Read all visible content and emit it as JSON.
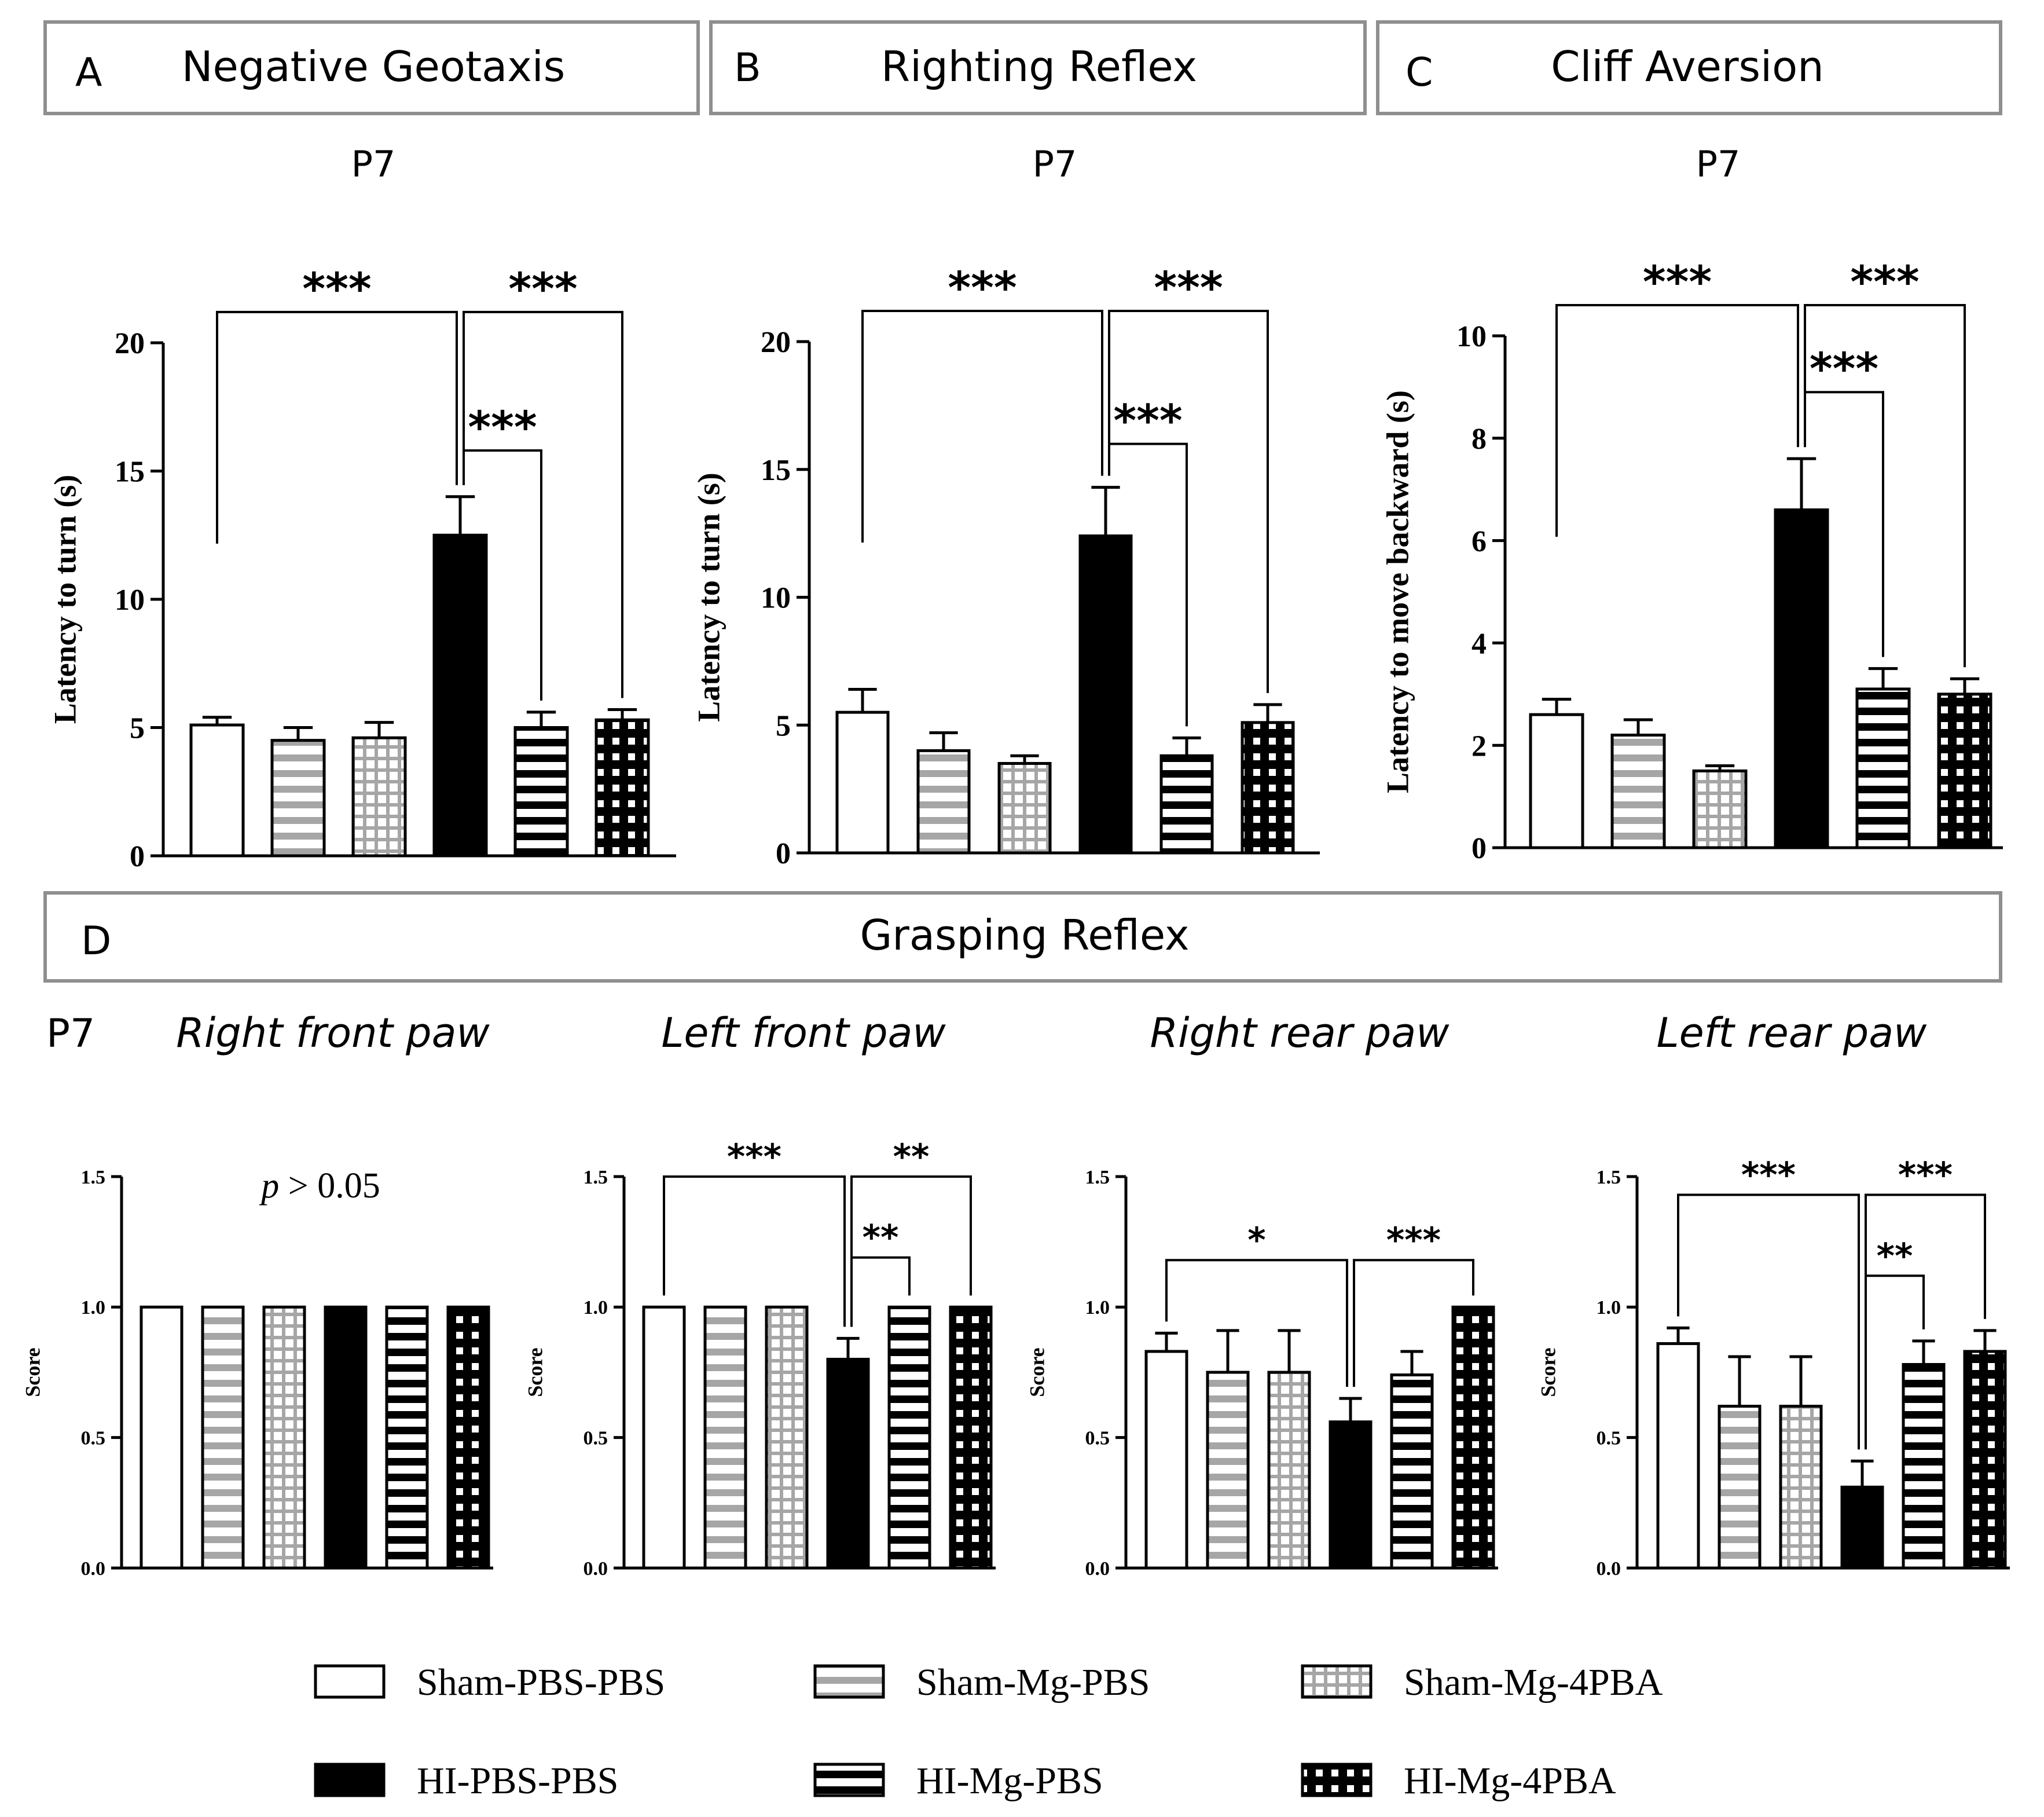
{
  "panels_top": [
    {
      "letter": "A",
      "title": "Negative Geotaxis",
      "sub": "P7"
    },
    {
      "letter": "B",
      "title": "Righting Reflex",
      "sub": "P7"
    },
    {
      "letter": "C",
      "title": "Cliff Aversion",
      "sub": "P7"
    }
  ],
  "panel_d": {
    "letter": "D",
    "title": "Grasping Reflex",
    "sub": "P7"
  },
  "groups": [
    {
      "name": "Sham-PBS-PBS",
      "pattern": "white"
    },
    {
      "name": "Sham-Mg-PBS",
      "pattern": "grey-hstripe"
    },
    {
      "name": "Sham-Mg-4PBA",
      "pattern": "grey-grid"
    },
    {
      "name": "HI-PBS-PBS",
      "pattern": "black"
    },
    {
      "name": "HI-Mg-PBS",
      "pattern": "black-hstripe"
    },
    {
      "name": "HI-Mg-4PBA",
      "pattern": "black-grid"
    }
  ],
  "colors": {
    "bar_edge": "#000000",
    "grey_pattern": "#a6a6a6",
    "box_border": "#8f8f8f"
  },
  "chart_data": [
    {
      "id": "A",
      "type": "bar",
      "title": "P7",
      "ylabel": "Latency to turn (s)",
      "ylim": [
        0,
        20
      ],
      "yticks": [
        "0",
        "5",
        "10",
        "15",
        "20"
      ],
      "categories": [
        "Sham-PBS-PBS",
        "Sham-Mg-PBS",
        "Sham-Mg-4PBA",
        "HI-PBS-PBS",
        "HI-Mg-PBS",
        "HI-Mg-4PBA"
      ],
      "values": [
        5.1,
        4.5,
        4.6,
        12.5,
        5.0,
        5.3
      ],
      "errors": [
        0.3,
        0.5,
        0.6,
        1.5,
        0.6,
        0.4
      ],
      "brackets": [
        {
          "from": 0,
          "to": 3,
          "y": 21.2,
          "label": "***"
        },
        {
          "from": 3,
          "to": 5,
          "y": 21.2,
          "label": "***"
        },
        {
          "from": 3,
          "to": 4,
          "y": 15.8,
          "label": "***"
        }
      ]
    },
    {
      "id": "B",
      "type": "bar",
      "title": "P7",
      "ylabel": "Latency to turn (s)",
      "ylim": [
        0,
        20
      ],
      "yticks": [
        "0",
        "5",
        "10",
        "15",
        "20"
      ],
      "categories": [
        "Sham-PBS-PBS",
        "Sham-Mg-PBS",
        "Sham-Mg-4PBA",
        "HI-PBS-PBS",
        "HI-Mg-PBS",
        "HI-Mg-4PBA"
      ],
      "values": [
        5.5,
        4.0,
        3.5,
        12.4,
        3.8,
        5.1
      ],
      "errors": [
        0.9,
        0.7,
        0.3,
        1.9,
        0.7,
        0.7
      ],
      "brackets": [
        {
          "from": 0,
          "to": 3,
          "y": 21.2,
          "label": "***"
        },
        {
          "from": 3,
          "to": 5,
          "y": 21.2,
          "label": "***"
        },
        {
          "from": 3,
          "to": 4,
          "y": 16.0,
          "label": "***"
        }
      ]
    },
    {
      "id": "C",
      "type": "bar",
      "title": "P7",
      "ylabel": "Latency to move backward (s)",
      "ylim": [
        0,
        10
      ],
      "yticks": [
        "0",
        "2",
        "4",
        "6",
        "8",
        "10"
      ],
      "categories": [
        "Sham-PBS-PBS",
        "Sham-Mg-PBS",
        "Sham-Mg-4PBA",
        "HI-PBS-PBS",
        "HI-Mg-PBS",
        "HI-Mg-4PBA"
      ],
      "values": [
        2.6,
        2.2,
        1.5,
        6.6,
        3.1,
        3.0
      ],
      "errors": [
        0.3,
        0.3,
        0.1,
        1.0,
        0.4,
        0.3
      ],
      "brackets": [
        {
          "from": 0,
          "to": 3,
          "y": 10.6,
          "label": "***"
        },
        {
          "from": 3,
          "to": 5,
          "y": 10.6,
          "label": "***"
        },
        {
          "from": 3,
          "to": 4,
          "y": 8.9,
          "label": "***"
        }
      ]
    },
    {
      "id": "D1",
      "type": "bar",
      "title": "Right front paw",
      "ylabel": "Score",
      "ylim": [
        0,
        1.5
      ],
      "yticks": [
        "0.0",
        "0.5",
        "1.0",
        "1.5"
      ],
      "categories": [
        "Sham-PBS-PBS",
        "Sham-Mg-PBS",
        "Sham-Mg-4PBA",
        "HI-PBS-PBS",
        "HI-Mg-PBS",
        "HI-Mg-4PBA"
      ],
      "values": [
        1.0,
        1.0,
        1.0,
        1.0,
        1.0,
        1.0
      ],
      "errors": [
        0,
        0,
        0,
        0,
        0,
        0
      ],
      "annotation": {
        "p": "p",
        "rest": " > 0.05"
      },
      "brackets": []
    },
    {
      "id": "D2",
      "type": "bar",
      "title": "Left front paw",
      "ylabel": "Score",
      "ylim": [
        0,
        1.5
      ],
      "yticks": [
        "0.0",
        "0.5",
        "1.0",
        "1.5"
      ],
      "categories": [
        "Sham-PBS-PBS",
        "Sham-Mg-PBS",
        "Sham-Mg-4PBA",
        "HI-PBS-PBS",
        "HI-Mg-PBS",
        "HI-Mg-4PBA"
      ],
      "values": [
        1.0,
        1.0,
        1.0,
        0.8,
        1.0,
        1.0
      ],
      "errors": [
        0,
        0,
        0,
        0.08,
        0,
        0
      ],
      "brackets": [
        {
          "from": 0,
          "to": 3,
          "y": 1.5,
          "label": "***"
        },
        {
          "from": 3,
          "to": 5,
          "y": 1.5,
          "label": "**"
        },
        {
          "from": 3,
          "to": 4,
          "y": 1.19,
          "label": "**"
        }
      ]
    },
    {
      "id": "D3",
      "type": "bar",
      "title": "Right rear paw",
      "ylabel": "Score",
      "ylim": [
        0,
        1.5
      ],
      "yticks": [
        "0.0",
        "0.5",
        "1.0",
        "1.5"
      ],
      "categories": [
        "Sham-PBS-PBS",
        "Sham-Mg-PBS",
        "Sham-Mg-4PBA",
        "HI-PBS-PBS",
        "HI-Mg-PBS",
        "HI-Mg-4PBA"
      ],
      "values": [
        0.83,
        0.75,
        0.75,
        0.56,
        0.74,
        1.0
      ],
      "errors": [
        0.07,
        0.16,
        0.16,
        0.09,
        0.09,
        0
      ],
      "brackets": [
        {
          "from": 0,
          "to": 3,
          "y": 1.18,
          "label": "*"
        },
        {
          "from": 3,
          "to": 5,
          "y": 1.18,
          "label": "***"
        }
      ]
    },
    {
      "id": "D4",
      "type": "bar",
      "title": "Left rear paw",
      "ylabel": "Score",
      "ylim": [
        0,
        1.5
      ],
      "yticks": [
        "0.0",
        "0.5",
        "1.0",
        "1.5"
      ],
      "categories": [
        "Sham-PBS-PBS",
        "Sham-Mg-PBS",
        "Sham-Mg-4PBA",
        "HI-PBS-PBS",
        "HI-Mg-PBS",
        "HI-Mg-4PBA"
      ],
      "values": [
        0.86,
        0.62,
        0.62,
        0.31,
        0.78,
        0.83
      ],
      "errors": [
        0.06,
        0.19,
        0.19,
        0.1,
        0.09,
        0.08
      ],
      "brackets": [
        {
          "from": 0,
          "to": 3,
          "y": 1.43,
          "label": "***"
        },
        {
          "from": 3,
          "to": 5,
          "y": 1.43,
          "label": "***"
        },
        {
          "from": 3,
          "to": 4,
          "y": 1.12,
          "label": "**"
        }
      ]
    }
  ]
}
